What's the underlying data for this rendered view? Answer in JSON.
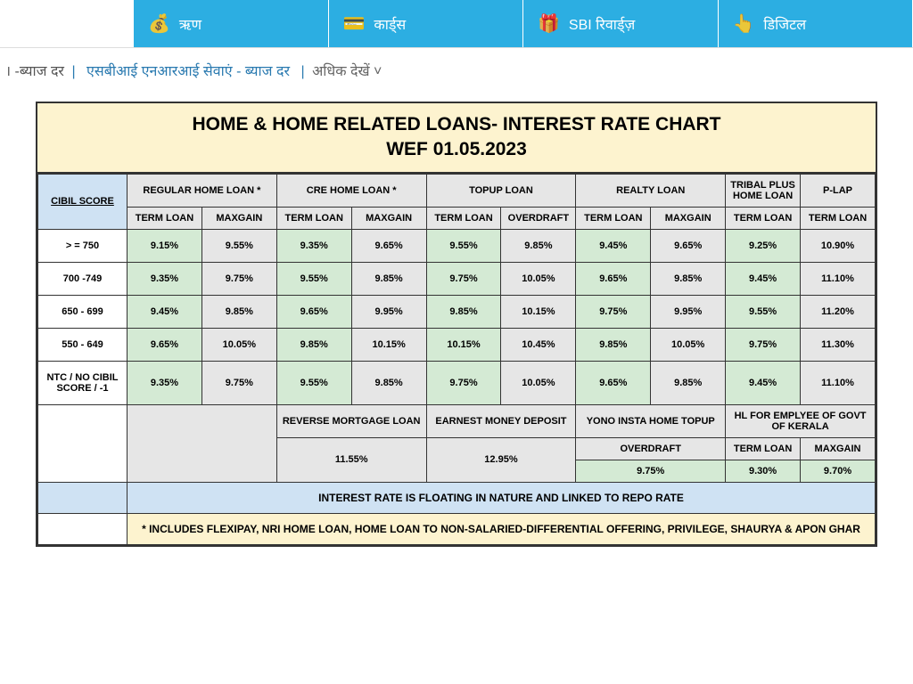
{
  "nav": {
    "items": [
      {
        "label": "ऋण"
      },
      {
        "label": "कार्ड्स"
      },
      {
        "label": "SBI रिवार्ड्ज़"
      },
      {
        "label": "डिजिटल"
      }
    ]
  },
  "breadcrumb": {
    "part1": "। -ब्याज दर",
    "sep": "|",
    "link": "एसबीआई एनआरआई सेवाएं - ब्याज दर",
    "more": "अधिक देखें ˅"
  },
  "chart": {
    "title_line1": "HOME & HOME RELATED LOANS- INTEREST RATE CHART",
    "title_line2": "WEF 01.05.2023",
    "score_header": "CIBIL SCORE",
    "loan_groups": [
      "REGULAR HOME LOAN *",
      "CRE HOME LOAN *",
      "TOPUP LOAN",
      "REALTY LOAN",
      "TRIBAL PLUS HOME LOAN",
      "P-LAP"
    ],
    "sub_headers": [
      "TERM LOAN",
      "MAXGAIN",
      "TERM LOAN",
      "MAXGAIN",
      "TERM LOAN",
      "OVERDRAFT",
      "TERM LOAN",
      "MAXGAIN",
      "TERM LOAN",
      "TERM LOAN"
    ],
    "rows": [
      {
        "score": "> = 750",
        "vals": [
          "9.15%",
          "9.55%",
          "9.35%",
          "9.65%",
          "9.55%",
          "9.85%",
          "9.45%",
          "9.65%",
          "9.25%",
          "10.90%"
        ]
      },
      {
        "score": "700 -749",
        "vals": [
          "9.35%",
          "9.75%",
          "9.55%",
          "9.85%",
          "9.75%",
          "10.05%",
          "9.65%",
          "9.85%",
          "9.45%",
          "11.10%"
        ]
      },
      {
        "score": "650 - 699",
        "vals": [
          "9.45%",
          "9.85%",
          "9.65%",
          "9.95%",
          "9.85%",
          "10.15%",
          "9.75%",
          "9.95%",
          "9.55%",
          "11.20%"
        ]
      },
      {
        "score": "550 - 649",
        "vals": [
          "9.65%",
          "10.05%",
          "9.85%",
          "10.15%",
          "10.15%",
          "10.45%",
          "9.85%",
          "10.05%",
          "9.75%",
          "11.30%"
        ]
      },
      {
        "score": "NTC / NO CIBIL SCORE / -1",
        "vals": [
          "9.35%",
          "9.75%",
          "9.55%",
          "9.85%",
          "9.75%",
          "10.05%",
          "9.65%",
          "9.85%",
          "9.45%",
          "11.10%"
        ]
      }
    ],
    "extra": {
      "hdr": [
        "REVERSE MORTGAGE LOAN",
        "EARNEST MONEY DEPOSIT",
        "YONO INSTA HOME TOPUP",
        "HL FOR EMPLYEE OF GOVT OF KERALA"
      ],
      "sub": [
        "OVERDRAFT",
        "TERM LOAN",
        "MAXGAIN"
      ],
      "vals": [
        "11.55%",
        "12.95%",
        "9.75%",
        "9.30%",
        "9.70%"
      ]
    },
    "note1": "INTEREST RATE IS FLOATING IN NATURE AND LINKED TO REPO RATE",
    "note2": "* INCLUDES FLEXIPAY, NRI HOME LOAN, HOME LOAN TO NON-SALARIED-DIFFERENTIAL OFFERING, PRIVILEGE, SHAURYA & APON GHAR"
  }
}
